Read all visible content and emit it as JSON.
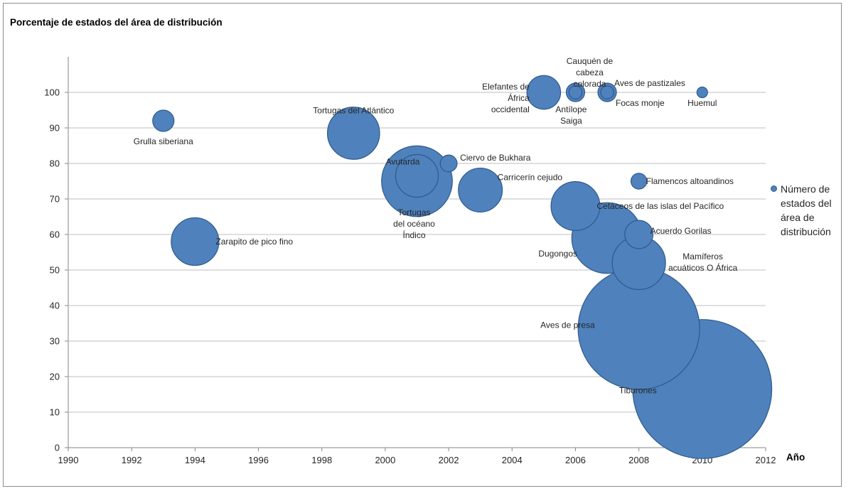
{
  "colors": {
    "bubble_fill": "#4f81bd",
    "bubble_stroke": "#2e5a8c",
    "grid": "#bfbfbf",
    "text": "#262626"
  },
  "chart_data": {
    "type": "scatter",
    "variant": "bubble",
    "title": "",
    "ylabel": "Porcentaje de estados del área de distribución",
    "xlabel": "Año",
    "xlim": [
      1990,
      2012
    ],
    "ylim": [
      0,
      100
    ],
    "x_ticks": [
      "1990",
      "1992",
      "1994",
      "1996",
      "1998",
      "2000",
      "2002",
      "2004",
      "2006",
      "2008",
      "2010",
      "2012"
    ],
    "y_ticks": [
      "0",
      "10",
      "20",
      "30",
      "40",
      "50",
      "60",
      "70",
      "80",
      "90",
      "100"
    ],
    "grid": "horizontal",
    "legend": {
      "placement": "right",
      "label": "Número de estados del área de distribución"
    },
    "series": [
      {
        "name": "Número de estados del área de distribución",
        "points": [
          {
            "label": "Grulla siberiana",
            "x": 1993,
            "y": 92,
            "size": 4
          },
          {
            "label": "Zarapito de pico fino",
            "x": 1994,
            "y": 58,
            "size": 20
          },
          {
            "label": "Tortugas del Atlántico",
            "x": 1999,
            "y": 88.5,
            "size": 24
          },
          {
            "label": "Tortugas del océano Índico",
            "x": 2001,
            "y": 75,
            "size": 44
          },
          {
            "label": "Avutarda",
            "x": 2001,
            "y": 76.5,
            "size": 16
          },
          {
            "label": "Ciervo de Bukhara",
            "x": 2002,
            "y": 80,
            "size": 2.5
          },
          {
            "label": "Carricerín cejudo",
            "x": 2003,
            "y": 72.5,
            "size": 17
          },
          {
            "label": "Elefantes de África occidental",
            "x": 2005,
            "y": 100,
            "size": 10
          },
          {
            "label": "Cauquén de cabeza colorada",
            "x": 2006,
            "y": 100,
            "size": 3
          },
          {
            "label": "Antílope Saiga",
            "x": 2006,
            "y": 100,
            "size": 1.5
          },
          {
            "label": "Aves de pastizales",
            "x": 2007,
            "y": 100,
            "size": 3
          },
          {
            "label": "Focas monje",
            "x": 2007,
            "y": 100,
            "size": 1.5
          },
          {
            "label": "Huemul",
            "x": 2010,
            "y": 100,
            "size": 1
          },
          {
            "label": "Flamencos altoandinos",
            "x": 2008,
            "y": 75,
            "size": 2.2
          },
          {
            "label": "Cetáceos de las islas del Pacífico",
            "x": 2006,
            "y": 68,
            "size": 21
          },
          {
            "label": "Dugongos",
            "x": 2007,
            "y": 59,
            "size": 44
          },
          {
            "label": "Acuerdo Gorilas",
            "x": 2008,
            "y": 60,
            "size": 7
          },
          {
            "label": "Mamíferos acuáticos O África",
            "x": 2008,
            "y": 52,
            "size": 25
          },
          {
            "label": "Aves de presa",
            "x": 2008,
            "y": 33.5,
            "size": 130
          },
          {
            "label": "Tiburones",
            "x": 2010,
            "y": 16.5,
            "size": 170
          }
        ]
      }
    ]
  }
}
